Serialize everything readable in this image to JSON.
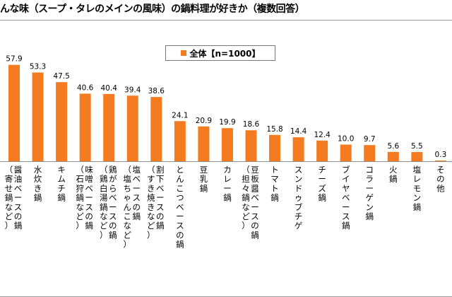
{
  "title": "んな味（スープ・タレのメインの風味）の鍋料理が好きか（複数回答）",
  "legend": {
    "label": "全体【n=1000】",
    "color": "#f47b20"
  },
  "chart_data": {
    "type": "bar",
    "series": [
      {
        "name": "全体【n=1000】",
        "color": "#f47b20"
      }
    ],
    "ylim": [
      0,
      65
    ],
    "grid": false,
    "legend_position": "top-center",
    "categories": [
      {
        "name": "醤油ベースの鍋",
        "sub": "（寄せ鍋など）",
        "value": 57.9
      },
      {
        "name": "水炊き鍋",
        "sub": "",
        "value": 53.3
      },
      {
        "name": "キムチ鍋",
        "sub": "",
        "value": 47.5
      },
      {
        "name": "味噌ベースの鍋",
        "sub": "（石狩鍋など）",
        "value": 40.6
      },
      {
        "name": "鶏がらベースの鍋",
        "sub": "（鶏白湯鍋など）",
        "value": 40.4
      },
      {
        "name": "塩ベースの鍋",
        "sub": "（塩ちゃんこなど）",
        "value": 39.4
      },
      {
        "name": "割下ベースの鍋",
        "sub": "（すき焼きなど）",
        "value": 38.6
      },
      {
        "name": "とんこつベースの鍋",
        "sub": "",
        "value": 24.1
      },
      {
        "name": "豆乳鍋",
        "sub": "",
        "value": 20.9
      },
      {
        "name": "カレー鍋",
        "sub": "",
        "value": 19.9
      },
      {
        "name": "豆板醤ベースの鍋",
        "sub": "（担々鍋など）",
        "value": 18.6
      },
      {
        "name": "トマト鍋",
        "sub": "",
        "value": 15.8
      },
      {
        "name": "スンドゥブチゲ",
        "sub": "",
        "value": 14.4
      },
      {
        "name": "チーズ鍋",
        "sub": "",
        "value": 12.4
      },
      {
        "name": "ブイヤベース鍋",
        "sub": "",
        "value": 10.0
      },
      {
        "name": "コラーゲン鍋",
        "sub": "",
        "value": 9.7
      },
      {
        "name": "火鍋",
        "sub": "",
        "value": 5.6
      },
      {
        "name": "塩レモン鍋",
        "sub": "",
        "value": 5.5
      },
      {
        "name": "その他",
        "sub": "",
        "value": 0.3
      }
    ]
  }
}
